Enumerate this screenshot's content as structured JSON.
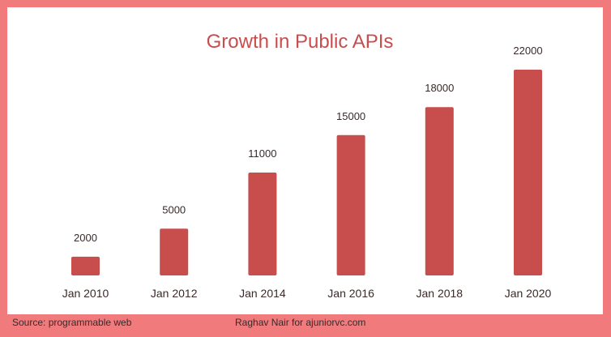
{
  "chart_data": {
    "type": "bar",
    "title": "Growth in Public APIs",
    "categories": [
      "Jan 2010",
      "Jan 2012",
      "Jan 2014",
      "Jan 2016",
      "Jan 2018",
      "Jan 2020"
    ],
    "values": [
      2000,
      5000,
      11000,
      15000,
      18000,
      22000
    ],
    "data_labels": [
      "2000",
      "5000",
      "11000",
      "15000",
      "18000",
      "22000"
    ],
    "xlabel": "",
    "ylabel": "",
    "ylim": [
      0,
      22000
    ],
    "grid": false,
    "legend": "none"
  },
  "footer": {
    "source": "Source: programmable web",
    "credit": "Raghav Nair for ajuniorvc.com"
  },
  "colors": {
    "bar": "#c84d4d",
    "title": "#c84d4d",
    "border": "#f07a7c",
    "label": "#3a2a2a"
  }
}
